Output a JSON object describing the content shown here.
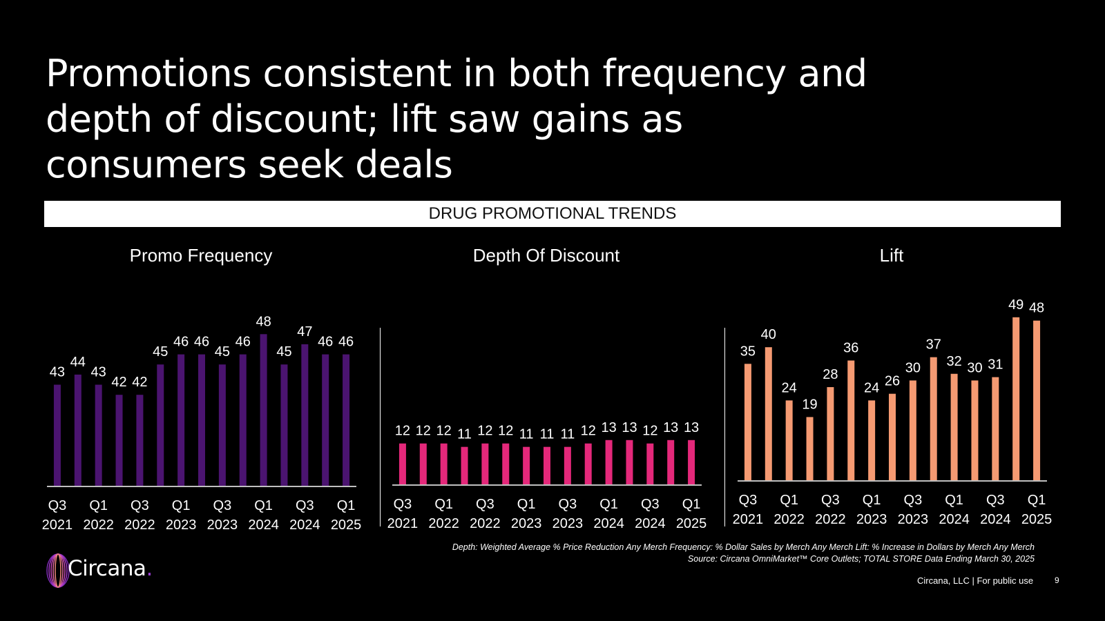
{
  "title": "Promotions consistent in both frequency and depth of discount; lift saw gains as consumers seek deals",
  "banner": "DRUG PROMOTIONAL TRENDS",
  "footnote": {
    "line1": "Depth: Weighted Average % Price Reduction Any Merch  Frequency: % Dollar Sales by Merch Any Merch  Lift: % Increase in Dollars by Merch Any Merch",
    "line2": "Source: Circana OmniMarket™ Core Outlets; TOTAL STORE Data Ending March 30, 2025"
  },
  "logo": {
    "name": "Circana",
    "dot": "."
  },
  "footer": {
    "legal": "Circana, LLC |  For public use",
    "page_number": "9"
  },
  "colors": {
    "frequency": "#4b1470",
    "depth": "#e4287a",
    "lift": "#f59a72"
  },
  "chart_data": [
    {
      "type": "bar",
      "title": "Promo Frequency",
      "color": "#4b1470",
      "categories": [
        "Q3 2021",
        "Q4 2021",
        "Q1 2022",
        "Q2 2022",
        "Q3 2022",
        "Q4 2022",
        "Q1 2023",
        "Q2 2023",
        "Q3 2023",
        "Q4 2023",
        "Q1 2024",
        "Q2 2024",
        "Q3 2024",
        "Q4 2024",
        "Q1 2025"
      ],
      "tick_labels": [
        [
          "Q3",
          "2021"
        ],
        [
          "Q1",
          "2022"
        ],
        [
          "Q3",
          "2022"
        ],
        [
          "Q1",
          "2023"
        ],
        [
          "Q3",
          "2023"
        ],
        [
          "Q1",
          "2024"
        ],
        [
          "Q3",
          "2024"
        ],
        [
          "Q1",
          "2025"
        ]
      ],
      "values": [
        43,
        44,
        43,
        42,
        42,
        45,
        46,
        46,
        45,
        46,
        48,
        45,
        47,
        46,
        46
      ],
      "ylim": [
        33,
        50
      ]
    },
    {
      "type": "bar",
      "title": "Depth Of Discount",
      "color": "#e4287a",
      "categories": [
        "Q3 2021",
        "Q4 2021",
        "Q1 2022",
        "Q2 2022",
        "Q3 2022",
        "Q4 2022",
        "Q1 2023",
        "Q2 2023",
        "Q3 2023",
        "Q4 2023",
        "Q1 2024",
        "Q2 2024",
        "Q3 2024",
        "Q4 2024",
        "Q1 2025"
      ],
      "tick_labels": [
        [
          "Q3",
          "2021"
        ],
        [
          "Q1",
          "2022"
        ],
        [
          "Q3",
          "2022"
        ],
        [
          "Q1",
          "2023"
        ],
        [
          "Q3",
          "2023"
        ],
        [
          "Q1",
          "2024"
        ],
        [
          "Q3",
          "2024"
        ],
        [
          "Q1",
          "2025"
        ]
      ],
      "values": [
        12,
        12,
        12,
        11,
        12,
        12,
        11,
        11,
        11,
        12,
        13,
        13,
        12,
        13,
        13
      ],
      "ylim": [
        0,
        50
      ]
    },
    {
      "type": "bar",
      "title": "Lift",
      "color": "#f59a72",
      "categories": [
        "Q3 2021",
        "Q4 2021",
        "Q1 2022",
        "Q2 2022",
        "Q3 2022",
        "Q4 2022",
        "Q1 2023",
        "Q2 2023",
        "Q3 2023",
        "Q4 2023",
        "Q1 2024",
        "Q2 2024",
        "Q3 2024",
        "Q4 2024",
        "Q1 2025"
      ],
      "tick_labels": [
        [
          "Q3",
          "2021"
        ],
        [
          "Q1",
          "2022"
        ],
        [
          "Q3",
          "2022"
        ],
        [
          "Q1",
          "2023"
        ],
        [
          "Q3",
          "2023"
        ],
        [
          "Q1",
          "2024"
        ],
        [
          "Q3",
          "2024"
        ],
        [
          "Q1",
          "2025"
        ]
      ],
      "values": [
        35,
        40,
        24,
        19,
        28,
        36,
        24,
        26,
        30,
        37,
        32,
        30,
        31,
        49,
        48
      ],
      "ylim": [
        0,
        50
      ]
    }
  ]
}
